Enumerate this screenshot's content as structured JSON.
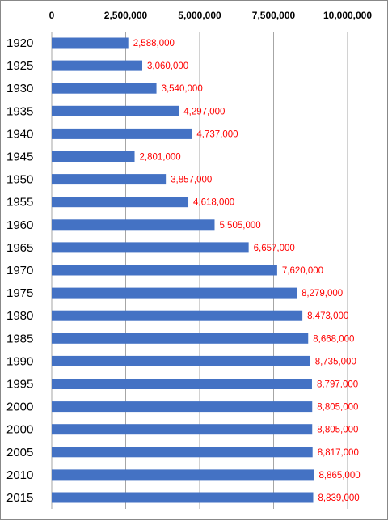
{
  "chart_data": {
    "type": "bar",
    "orientation": "horizontal",
    "x_axis_position": "top",
    "grid": true,
    "xlim": [
      0,
      10000000
    ],
    "x_ticks": [
      0,
      2500000,
      5000000,
      7500000,
      10000000
    ],
    "x_tick_labels": [
      "0",
      "2,500,000",
      "5,000,000",
      "7,500,000",
      "10,000,000"
    ],
    "categories": [
      "1920",
      "1925",
      "1930",
      "1935",
      "1940",
      "1945",
      "1950",
      "1955",
      "1960",
      "1965",
      "1970",
      "1975",
      "1980",
      "1985",
      "1990",
      "1995",
      "2000",
      "2000",
      "2005",
      "2010",
      "2015"
    ],
    "values": [
      2588000,
      3060000,
      3540000,
      4297000,
      4737000,
      2801000,
      3857000,
      4618000,
      5505000,
      6657000,
      7620000,
      8279000,
      8473000,
      8668000,
      8735000,
      8797000,
      8805000,
      8805000,
      8817000,
      8865000,
      8839000
    ],
    "data_labels": [
      "2,588,000",
      "3,060,000",
      "3,540,000",
      "4,297,000",
      "4,737,000",
      "2,801,000",
      "3,857,000",
      "4,618,000",
      "5,505,000",
      "6,657,000",
      "7,620,000",
      "8,279,000",
      "8,473,000",
      "8,668,000",
      "8,735,000",
      "8,797,000",
      "8,805,000",
      "8,805,000",
      "8,817,000",
      "8,865,000",
      "8,839,000"
    ],
    "colors": {
      "bar": "#4472C4",
      "data_label": "#FF0000",
      "grid": "#A6A6A6"
    }
  }
}
